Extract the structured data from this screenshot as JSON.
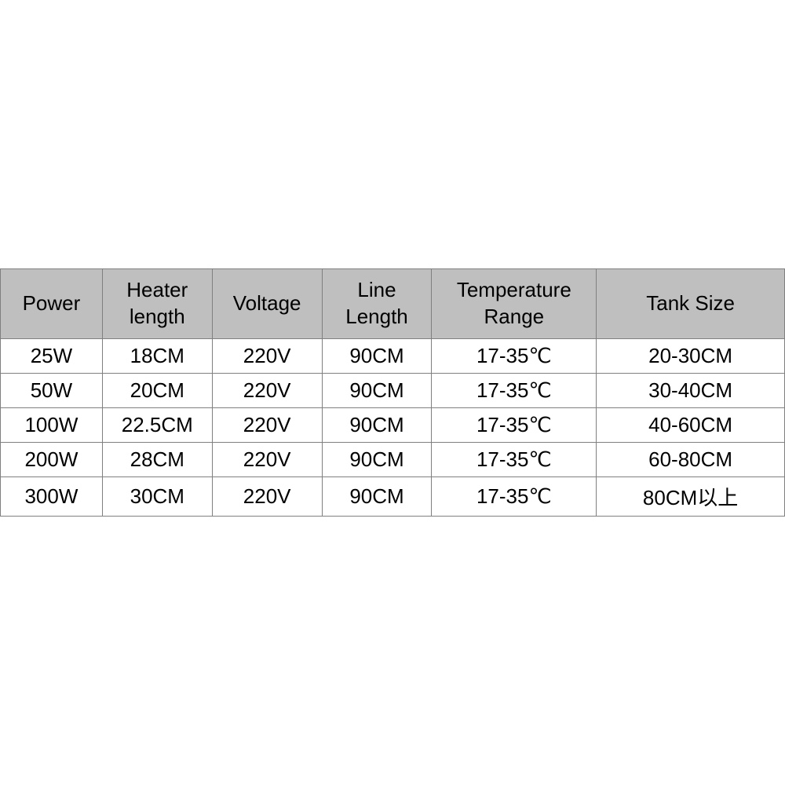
{
  "table": {
    "type": "table",
    "background_color": "#ffffff",
    "header_background": "#bfbfbf",
    "border_color": "#808080",
    "text_color": "#000000",
    "header_fontsize": 26,
    "cell_fontsize": 26,
    "columns": [
      {
        "label": "Power",
        "width_pct": 13
      },
      {
        "label": "Heater length",
        "width_pct": 14
      },
      {
        "label": "Voltage",
        "width_pct": 14
      },
      {
        "label": "Line Length",
        "width_pct": 14
      },
      {
        "label": "Temperature Range",
        "width_pct": 21
      },
      {
        "label": "Tank Size",
        "width_pct": 24
      }
    ],
    "rows": [
      [
        "25W",
        "18CM",
        "220V",
        "90CM",
        "17-35℃",
        "20-30CM"
      ],
      [
        "50W",
        "20CM",
        "220V",
        "90CM",
        "17-35℃",
        "30-40CM"
      ],
      [
        "100W",
        "22.5CM",
        "220V",
        "90CM",
        "17-35℃",
        "40-60CM"
      ],
      [
        "200W",
        "28CM",
        "220V",
        "90CM",
        "17-35℃",
        "60-80CM"
      ],
      [
        "300W",
        "30CM",
        "220V",
        "90CM",
        "17-35℃",
        "80CM以上"
      ]
    ]
  }
}
